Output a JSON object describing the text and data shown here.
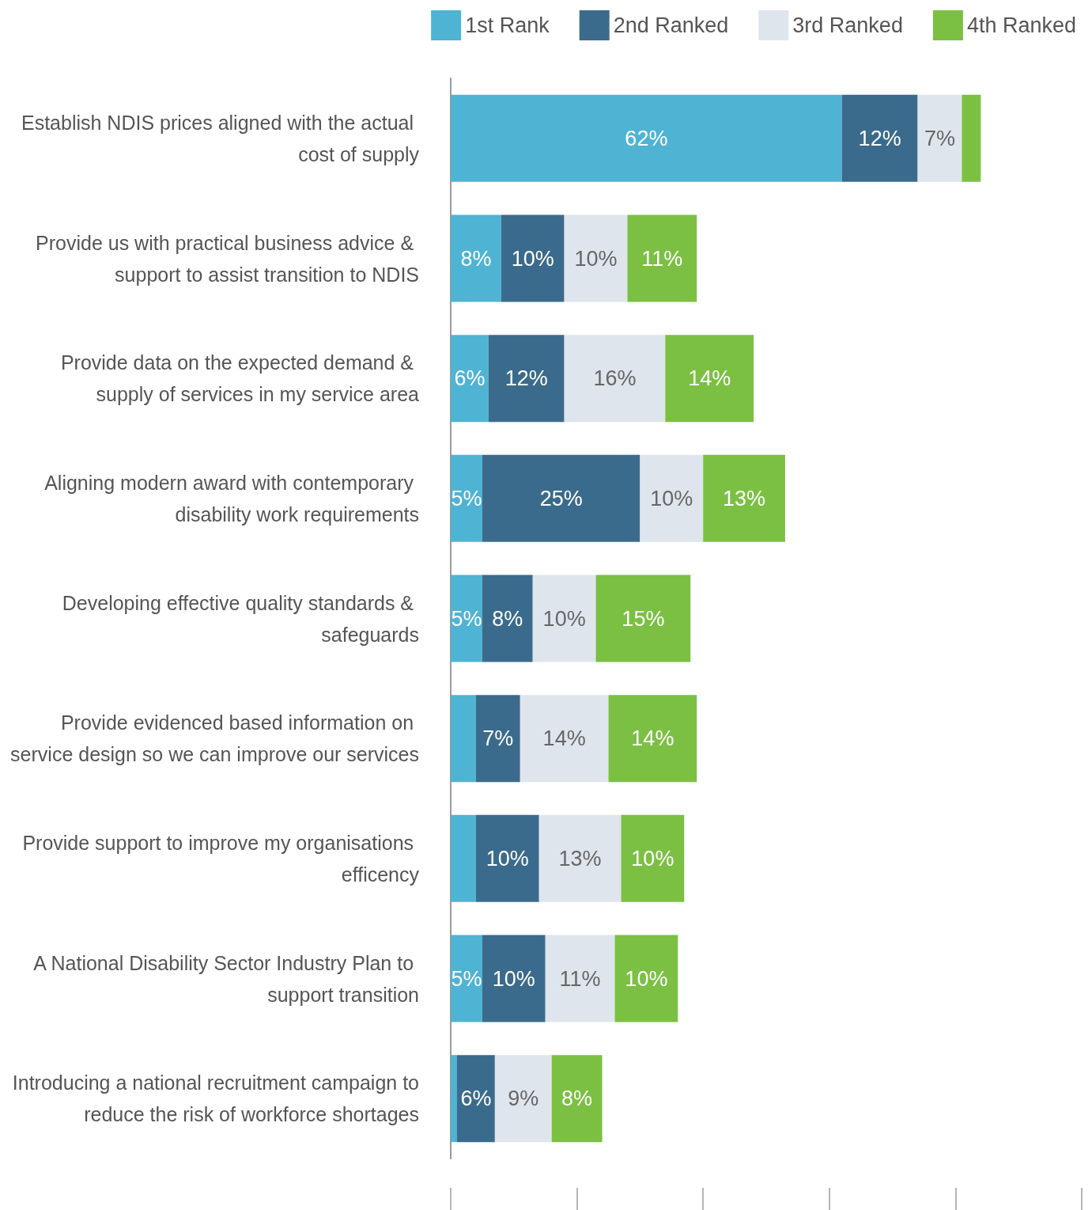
{
  "chart_data": {
    "type": "bar",
    "orientation": "horizontal",
    "stacked": true,
    "legend": "top right",
    "grid": false,
    "tick_labels": "y",
    "categories": [
      "Establish NDIS prices aligned with the actual cost of supply",
      "Provide us with practical business advice & support to assist transition to NDIS",
      "Provide data on the expected demand & supply of services in my service area",
      "Aligning modern award with contemporary disability work requirements",
      "Developing effective quality standards & safeguards",
      "Provide evidenced based information on service design so we can improve our services",
      "Provide support to improve my organisations efficency",
      "A National Disability Sector Industry Plan to support transition",
      "Introducing a national recruitment campaign to reduce the risk of workforce shortages"
    ],
    "series": [
      {
        "name": "1st Rank",
        "color": "#4fb3d4",
        "values": [
          62,
          8,
          6,
          5,
          5,
          4,
          4,
          5,
          1
        ],
        "value_labels": [
          "62%",
          "8%",
          "6%",
          "5%",
          "5%",
          null,
          null,
          "5%",
          null
        ]
      },
      {
        "name": "2nd Ranked",
        "color": "#3b6b8c",
        "values": [
          12,
          10,
          12,
          25,
          8,
          7,
          10,
          10,
          6
        ],
        "value_labels": [
          "12%",
          "10%",
          "12%",
          "25%",
          "8%",
          "7%",
          "10%",
          "10%",
          "6%"
        ]
      },
      {
        "name": "3rd Ranked",
        "color": "#dfe5ec",
        "values": [
          7,
          10,
          16,
          10,
          10,
          14,
          13,
          11,
          9
        ],
        "value_labels": [
          "7%",
          "10%",
          "16%",
          "10%",
          "10%",
          "14%",
          "13%",
          "11%",
          "9%"
        ]
      },
      {
        "name": "4th Ranked",
        "color": "#7bc043",
        "values": [
          3,
          11,
          14,
          13,
          15,
          14,
          10,
          10,
          8
        ],
        "value_labels": [
          null,
          "11%",
          "14%",
          "13%",
          "15%",
          "14%",
          "10%",
          "10%",
          "8%"
        ]
      }
    ]
  }
}
